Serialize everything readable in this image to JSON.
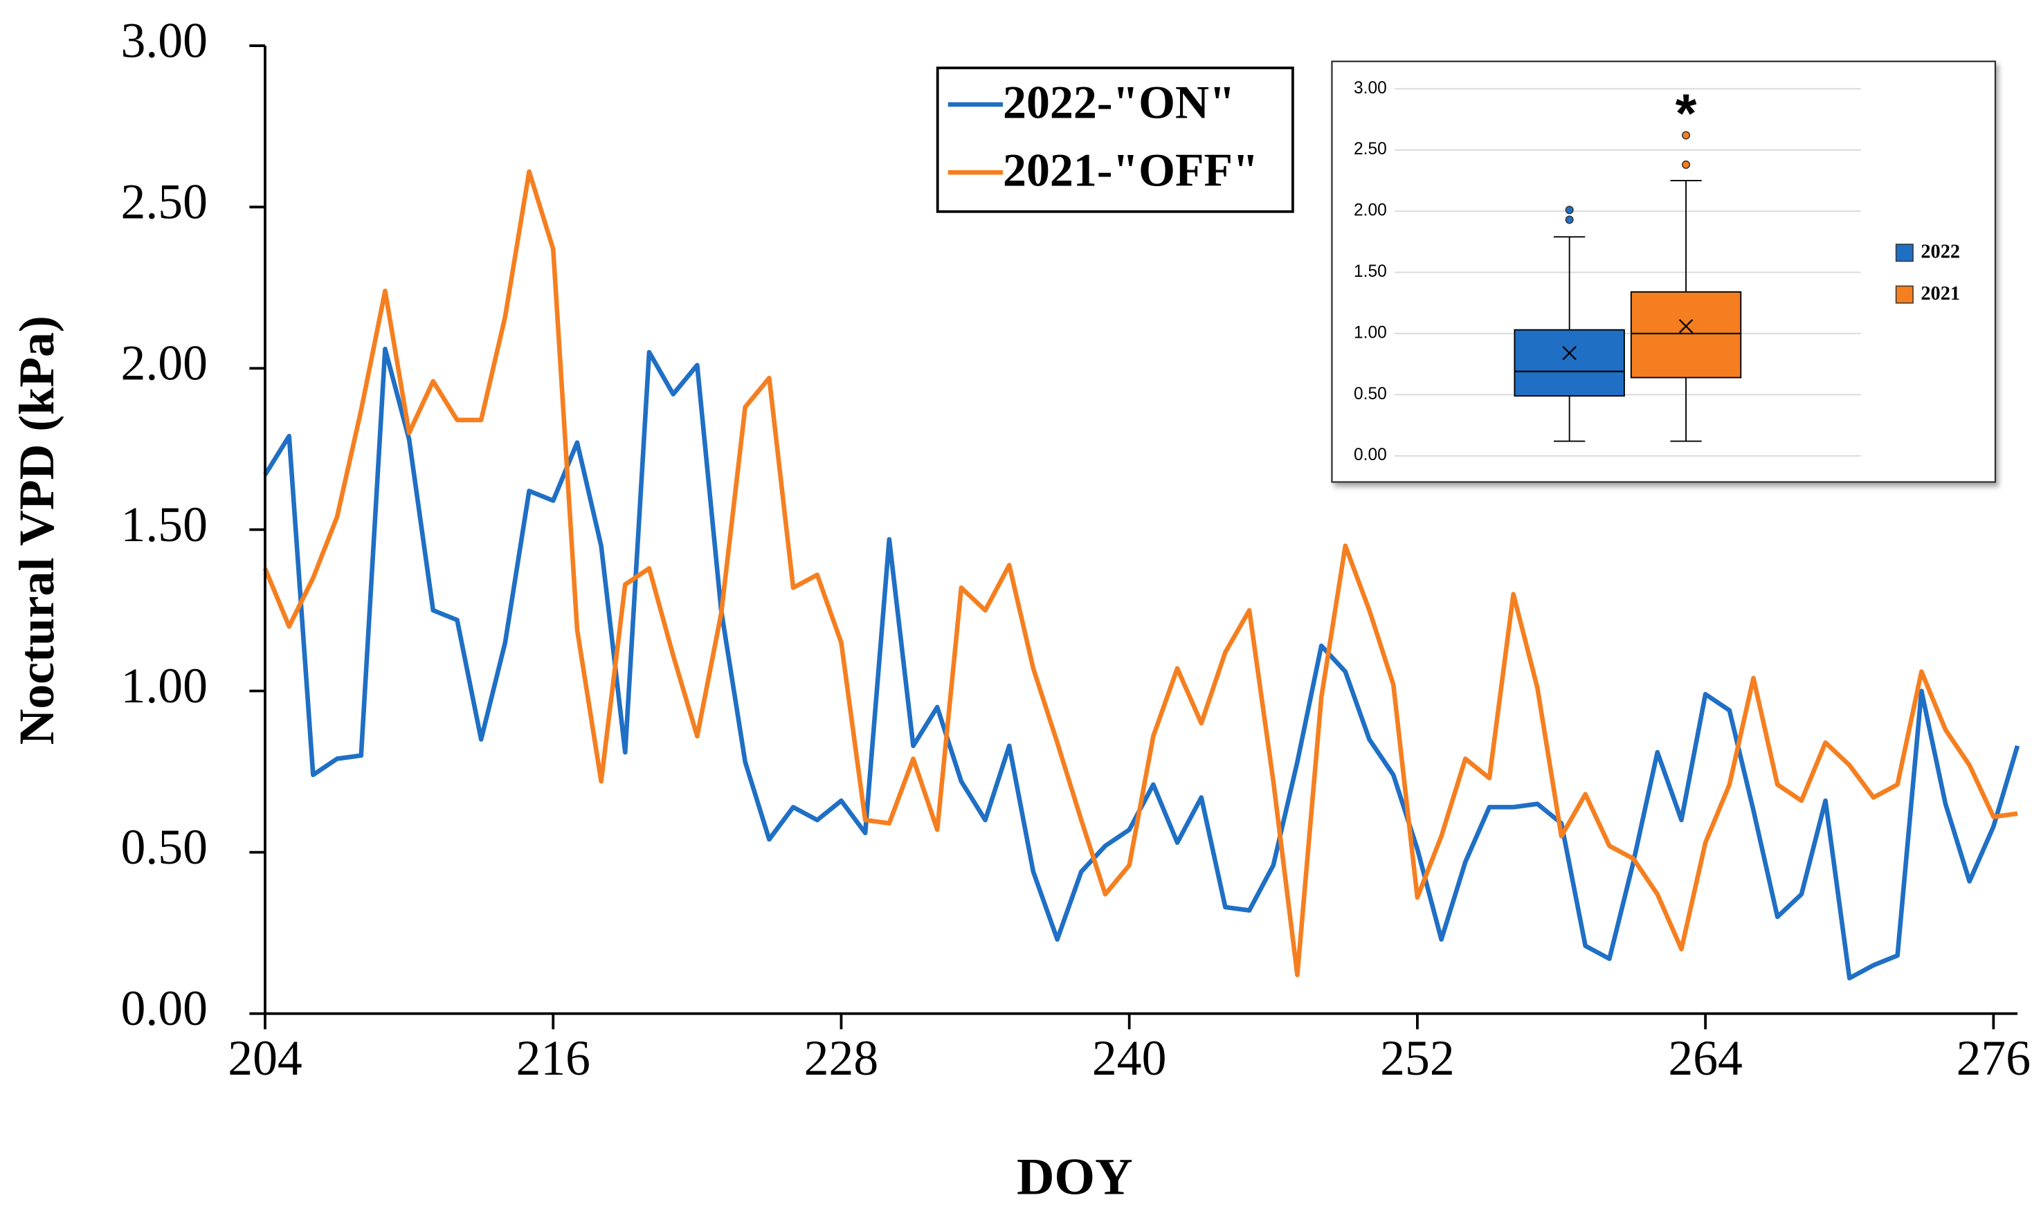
{
  "chart_data": [
    {
      "type": "line",
      "x_label": "DOY",
      "y_label": "Noctural VPD (kPa)",
      "x": [
        204,
        205,
        206,
        207,
        208,
        209,
        210,
        211,
        212,
        213,
        214,
        215,
        216,
        217,
        218,
        219,
        220,
        221,
        222,
        223,
        224,
        225,
        226,
        227,
        228,
        229,
        230,
        231,
        232,
        233,
        234,
        235,
        236,
        237,
        238,
        239,
        240,
        241,
        242,
        243,
        244,
        245,
        246,
        247,
        248,
        249,
        250,
        251,
        252,
        253,
        254,
        255,
        256,
        257,
        258,
        259,
        260,
        261,
        262,
        263,
        264,
        265,
        266,
        267,
        268,
        269,
        270,
        271,
        272,
        273,
        274,
        275,
        276,
        277
      ],
      "series": [
        {
          "name": "2022-\"ON\"",
          "color": "#1f6fc5",
          "values": [
            1.67,
            1.79,
            0.74,
            0.79,
            0.8,
            2.06,
            1.78,
            1.25,
            1.22,
            0.85,
            1.15,
            1.62,
            1.59,
            1.77,
            1.45,
            0.81,
            2.05,
            1.92,
            2.01,
            1.25,
            0.78,
            0.54,
            0.64,
            0.6,
            0.66,
            0.56,
            1.47,
            0.83,
            0.95,
            0.72,
            0.6,
            0.83,
            0.44,
            0.23,
            0.44,
            0.52,
            0.57,
            0.71,
            0.53,
            0.67,
            0.33,
            0.32,
            0.46,
            0.78,
            1.14,
            1.06,
            0.85,
            0.74,
            0.51,
            0.23,
            0.47,
            0.64,
            0.64,
            0.65,
            0.59,
            0.21,
            0.17,
            0.47,
            0.81,
            0.6,
            0.99,
            0.94,
            0.63,
            0.3,
            0.37,
            0.66,
            0.11,
            0.15,
            0.18,
            1.0,
            0.65,
            0.41,
            0.58,
            0.83
          ]
        },
        {
          "name": "2021-\"OFF\"",
          "color": "#f57f20",
          "values": [
            1.38,
            1.2,
            1.35,
            1.54,
            1.87,
            2.24,
            1.8,
            1.96,
            1.84,
            1.84,
            2.16,
            2.61,
            2.37,
            1.19,
            0.72,
            1.33,
            1.38,
            1.11,
            0.86,
            1.24,
            1.88,
            1.97,
            1.32,
            1.36,
            1.15,
            0.6,
            0.59,
            0.79,
            0.57,
            1.32,
            1.25,
            1.39,
            1.07,
            0.84,
            0.6,
            0.37,
            0.46,
            0.86,
            1.07,
            0.9,
            1.12,
            1.25,
            0.72,
            0.12,
            0.98,
            1.45,
            1.25,
            1.02,
            0.36,
            0.55,
            0.79,
            0.73,
            1.3,
            1.01,
            0.55,
            0.68,
            0.52,
            0.48,
            0.37,
            0.2,
            0.53,
            0.71,
            1.04,
            0.71,
            0.66,
            0.84,
            0.77,
            0.67,
            0.71,
            1.06,
            0.88,
            0.77,
            0.61,
            0.62
          ]
        }
      ],
      "xlim": [
        204,
        277
      ],
      "xticks": [
        204,
        216,
        228,
        240,
        252,
        264,
        276
      ],
      "ylim": [
        0,
        3
      ],
      "yticks": [
        {
          "value": 0,
          "label": "0.00"
        },
        {
          "value": 0.5,
          "label": "0.50"
        },
        {
          "value": 1,
          "label": "1.00"
        },
        {
          "value": 1.5,
          "label": "1.50"
        },
        {
          "value": 2,
          "label": "2.00"
        },
        {
          "value": 2.5,
          "label": "2.50"
        },
        {
          "value": 3,
          "label": "3.00"
        }
      ],
      "legend": "top-center"
    },
    {
      "type": "box",
      "annotation": "*",
      "series": [
        {
          "name": "2022",
          "color": "#1f6fc5",
          "low": 0.12,
          "q1": 0.49,
          "median": 0.69,
          "q3": 1.03,
          "high": 1.79,
          "mean": 0.84,
          "outliers": [
            1.93,
            2.01
          ]
        },
        {
          "name": "2021",
          "color": "#f57f20",
          "low": 0.12,
          "q1": 0.64,
          "median": 1.0,
          "q3": 1.34,
          "high": 2.25,
          "mean": 1.06,
          "outliers": [
            2.38,
            2.62
          ]
        }
      ],
      "ylim": [
        0,
        3
      ],
      "yticks": [
        {
          "value": 0,
          "label": "0.00"
        },
        {
          "value": 0.5,
          "label": "0.50"
        },
        {
          "value": 1,
          "label": "1.00"
        },
        {
          "value": 1.5,
          "label": "1.50"
        },
        {
          "value": 2,
          "label": "2.00"
        },
        {
          "value": 2.5,
          "label": "2.50"
        },
        {
          "value": 3,
          "label": "3.00"
        }
      ],
      "grid": true,
      "legend": "right"
    }
  ]
}
